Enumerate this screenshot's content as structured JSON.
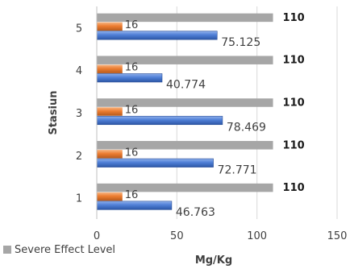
{
  "chart_data": {
    "type": "bar",
    "orientation": "horizontal",
    "categories": [
      "1",
      "2",
      "3",
      "4",
      "5"
    ],
    "series": [
      {
        "name": "Severe Effect Level",
        "values": [
          110,
          110,
          110,
          110,
          110
        ],
        "labels": [
          "110",
          "110",
          "110",
          "110",
          "110"
        ],
        "color": "#a6a6a6"
      },
      {
        "name": "",
        "values": [
          16,
          16,
          16,
          16,
          16
        ],
        "labels": [
          "16",
          "16",
          "16",
          "16",
          "16"
        ],
        "color": "#ed7d31"
      },
      {
        "name": "",
        "values": [
          46.763,
          72.771,
          78.469,
          40.774,
          75.125
        ],
        "labels": [
          "46.763",
          "72.771",
          "78.469",
          "40.774",
          "75.125"
        ],
        "color": "#4472c4"
      }
    ],
    "xlabel": "Mg/Kg",
    "ylabel": "Stasiun",
    "xlim": [
      0,
      150
    ],
    "xticks": [
      "0",
      "50",
      "100",
      "150"
    ],
    "grid": "vertical",
    "legend": "bottom-left"
  }
}
